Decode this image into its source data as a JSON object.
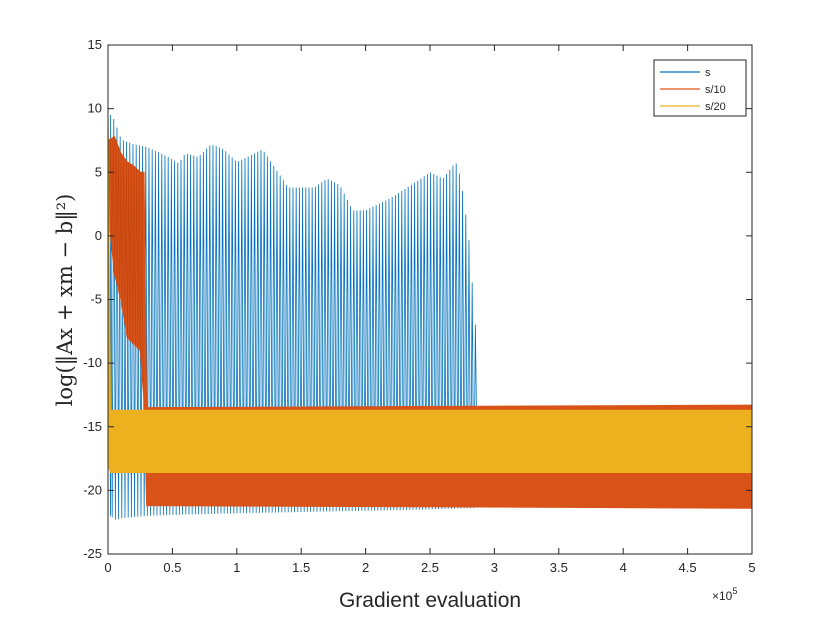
{
  "chart_data": {
    "type": "line",
    "title": "",
    "xlabel": "Gradient evaluation",
    "ylabel": "log(||Ax + x_m - b||²)",
    "ylabel_display": "log(‖Ax + xm − b‖²)",
    "xlim": [
      0,
      5
    ],
    "ylim": [
      -25,
      15
    ],
    "x_multiplier": "×10",
    "x_multiplier_exp": "5",
    "xticks": [
      0,
      0.5,
      1,
      1.5,
      2,
      2.5,
      3,
      3.5,
      4,
      4.5,
      5
    ],
    "xtick_labels": [
      "0",
      "0.5",
      "1",
      "1.5",
      "2",
      "2.5",
      "3",
      "3.5",
      "4",
      "4.5",
      "5"
    ],
    "yticks": [
      -25,
      -20,
      -15,
      -10,
      -5,
      0,
      5,
      10,
      15
    ],
    "ytick_labels": [
      "-25",
      "-20",
      "-15",
      "-10",
      "-5",
      "0",
      "5",
      "10",
      "15"
    ],
    "grid": false,
    "legend_position": "top-right",
    "series": [
      {
        "name": "s",
        "color": "#0072BD",
        "drawn_as": "oscillation between a low floor and a varying peak envelope",
        "low_envelope_x": [
          0.02,
          0.05,
          0.1,
          0.3,
          0.6,
          1.0,
          1.5,
          2.0,
          2.5,
          2.8,
          2.86
        ],
        "low_envelope_y": [
          -22.0,
          -22.3,
          -22.2,
          -22.0,
          -21.9,
          -21.8,
          -21.7,
          -21.6,
          -21.5,
          -21.4,
          -21.4
        ],
        "peak_envelope_x": [
          0.02,
          0.06,
          0.08,
          0.12,
          0.2,
          0.3,
          0.45,
          0.55,
          0.6,
          0.7,
          0.8,
          0.9,
          1.0,
          1.2,
          1.4,
          1.6,
          1.7,
          1.8,
          1.9,
          2.0,
          2.2,
          2.4,
          2.5,
          2.6,
          2.7,
          2.74,
          2.8,
          2.86
        ],
        "peak_envelope_y": [
          9.5,
          9.0,
          8.0,
          7.5,
          7.2,
          7.0,
          6.3,
          5.7,
          6.5,
          6.2,
          7.2,
          6.8,
          5.8,
          6.8,
          3.8,
          3.8,
          4.5,
          4.0,
          2.0,
          2.0,
          3.0,
          4.3,
          5.0,
          4.5,
          5.8,
          4.5,
          0.0,
          -8.0
        ],
        "oscillation_start": 0.02,
        "oscillation_end": 2.86,
        "tail_x": [
          2.86,
          5.0
        ],
        "tail_y": [
          -13.5,
          -13.5
        ]
      },
      {
        "name": "s/10",
        "color": "#D95319",
        "x": [
          0,
          0.05,
          0.1,
          0.15,
          0.2,
          0.25,
          0.28,
          0.3,
          5.0
        ],
        "y_high": [
          7.5,
          7.8,
          6.5,
          5.8,
          5.5,
          5.0,
          5.0,
          -13.5,
          -13.3
        ],
        "y_low": [
          2.0,
          -3.0,
          -5.0,
          -8.0,
          -8.5,
          -9.0,
          -13.0,
          -21.2,
          -21.4
        ]
      },
      {
        "name": "s/20",
        "color": "#EDB120",
        "x": [
          0,
          0.02,
          0.05,
          5.0
        ],
        "y_high": [
          10.0,
          -13.7,
          -13.7,
          -13.7
        ],
        "y_low": [
          -18.0,
          -18.6,
          -18.6,
          -18.6
        ]
      }
    ]
  }
}
